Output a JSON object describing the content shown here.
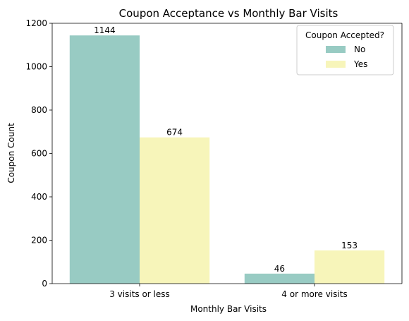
{
  "chart_data": {
    "type": "bar",
    "title": "Coupon Acceptance vs Monthly Bar Visits",
    "xlabel": "Monthly Bar Visits",
    "ylabel": "Coupon Count",
    "categories": [
      "3 visits or less",
      "4 or more visits"
    ],
    "series": [
      {
        "name": "No",
        "values": [
          1144,
          46
        ],
        "color": "#98cbc3"
      },
      {
        "name": "Yes",
        "values": [
          674,
          153
        ],
        "color": "#f7f5ba"
      }
    ],
    "ylim": [
      0,
      1200
    ],
    "yticks": [
      0,
      200,
      400,
      600,
      800,
      1000,
      1200
    ],
    "data_labels": [
      [
        "1144",
        "46"
      ],
      [
        "674",
        "153"
      ]
    ],
    "legend": {
      "title": "Coupon Accepted?",
      "placement": "top-right"
    },
    "grid": false
  }
}
